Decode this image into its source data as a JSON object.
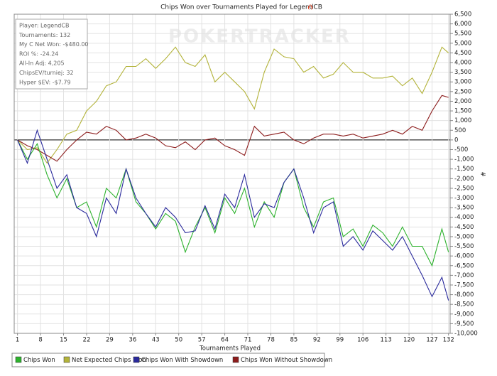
{
  "chart_data": {
    "type": "line",
    "title": "Chips Won over Tournaments Played for LegendCB",
    "watermark": "POKERTRACKER",
    "x_label": "Tournaments Played",
    "y_label": "#",
    "info": [
      "Player: LegendCB",
      "Tournaments: 132",
      "My C Net Won: -$480.00",
      "ROI %: -24.24",
      "All-In Adj: 4,205",
      "ChipsEV/turniej: 32",
      "Hyper $EV: -$7.79"
    ],
    "grid": true,
    "xlim": [
      0,
      132.5
    ],
    "xticks": [
      1,
      8,
      15,
      22,
      29,
      36,
      43,
      50,
      57,
      64,
      71,
      78,
      85,
      92,
      99,
      106,
      113,
      120,
      127,
      132
    ],
    "ylim": [
      -10000,
      6500
    ],
    "yticks": [
      {
        "value": 6500,
        "label": "6,500"
      },
      {
        "value": 6000,
        "label": "6,000"
      },
      {
        "value": 5500,
        "label": "5,500"
      },
      {
        "value": 5000,
        "label": "5,000"
      },
      {
        "value": 4500,
        "label": "4,500"
      },
      {
        "value": 4000,
        "label": "4,000"
      },
      {
        "value": 3500,
        "label": "3,500"
      },
      {
        "value": 3000,
        "label": "3,000"
      },
      {
        "value": 2500,
        "label": "2,500"
      },
      {
        "value": 2000,
        "label": "2,000"
      },
      {
        "value": 1500,
        "label": "1,500"
      },
      {
        "value": 1000,
        "label": "1,000"
      },
      500,
      0,
      -500,
      {
        "value": -1000,
        "label": "-1,000"
      },
      {
        "value": -1500,
        "label": "-1,500"
      },
      {
        "value": -2000,
        "label": "-2,000"
      },
      {
        "value": -2500,
        "label": "-2,500"
      },
      {
        "value": -3000,
        "label": "-3,000"
      },
      {
        "value": -3500,
        "label": "-3,500"
      },
      {
        "value": -4000,
        "label": "-4,000"
      },
      {
        "value": -4500,
        "label": "-4,500"
      },
      {
        "value": -5000,
        "label": "-5,000"
      },
      {
        "value": -5500,
        "label": "-5,500"
      },
      {
        "value": -6000,
        "label": "-6,000"
      },
      {
        "value": -6500,
        "label": "-6,500"
      },
      {
        "value": -7000,
        "label": "-7,000"
      },
      {
        "value": -7500,
        "label": "-7,500"
      },
      {
        "value": -8000,
        "label": "-8,000"
      },
      {
        "value": -8500,
        "label": "-8,500"
      },
      {
        "value": -9000,
        "label": "-9,000"
      },
      {
        "value": -9500,
        "label": "-9,500"
      },
      {
        "value": -10000,
        "label": "-10,000"
      }
    ],
    "x": [
      1,
      4,
      7,
      10,
      13,
      16,
      19,
      22,
      25,
      28,
      31,
      34,
      37,
      40,
      43,
      46,
      49,
      52,
      55,
      58,
      61,
      64,
      67,
      70,
      73,
      76,
      79,
      82,
      85,
      88,
      91,
      94,
      97,
      100,
      103,
      106,
      109,
      112,
      115,
      118,
      121,
      124,
      127,
      130,
      132
    ],
    "series": [
      {
        "name": "Chips Won",
        "color": "#2db22d",
        "values": [
          0,
          -1000,
          -200,
          -1800,
          -3000,
          -2000,
          -3500,
          -3200,
          -4500,
          -2500,
          -3000,
          -1500,
          -3200,
          -3800,
          -4600,
          -3800,
          -4200,
          -5800,
          -4500,
          -3500,
          -4800,
          -3000,
          -3800,
          -2500,
          -4500,
          -3200,
          -4000,
          -2200,
          -1500,
          -3500,
          -4500,
          -3200,
          -3000,
          -5000,
          -4600,
          -5500,
          -4400,
          -4800,
          -5500,
          -4500,
          -5500,
          -5500,
          -6500,
          -4600,
          -5800
        ]
      },
      {
        "name": "Net Expected Chips Won",
        "color": "#b3b33a",
        "values": [
          0,
          -500,
          -400,
          -1200,
          -500,
          300,
          500,
          1500,
          2000,
          2800,
          3000,
          3800,
          3800,
          4200,
          3700,
          4200,
          4800,
          4000,
          3800,
          4400,
          3000,
          3500,
          3000,
          2500,
          1600,
          3500,
          4700,
          4300,
          4200,
          3500,
          3800,
          3200,
          3400,
          4000,
          3500,
          3500,
          3200,
          3200,
          3300,
          2800,
          3200,
          2400,
          3500,
          4800,
          4500
        ]
      },
      {
        "name": "Chips Won With Showdown",
        "color": "#2a2a9c",
        "values": [
          0,
          -1200,
          500,
          -1000,
          -2500,
          -1800,
          -3500,
          -3800,
          -5000,
          -3000,
          -3800,
          -1500,
          -3000,
          -3800,
          -4500,
          -3500,
          -4000,
          -4800,
          -4700,
          -3400,
          -4600,
          -2800,
          -3500,
          -1800,
          -4000,
          -3300,
          -3500,
          -2200,
          -1500,
          -3000,
          -4800,
          -3500,
          -3200,
          -5500,
          -5000,
          -5700,
          -4700,
          -5200,
          -5700,
          -5000,
          -6000,
          -7000,
          -8100,
          -7100,
          -8300
        ]
      },
      {
        "name": "Chips Won Without Showdown",
        "color": "#8c1c1c",
        "values": [
          0,
          -300,
          -500,
          -800,
          -1100,
          -500,
          0,
          400,
          300,
          700,
          500,
          0,
          100,
          300,
          100,
          -300,
          -400,
          -100,
          -500,
          0,
          100,
          -300,
          -500,
          -800,
          700,
          200,
          300,
          400,
          0,
          -200,
          100,
          300,
          300,
          200,
          300,
          100,
          200,
          300,
          500,
          300,
          700,
          500,
          1500,
          2300,
          2200
        ]
      }
    ]
  }
}
